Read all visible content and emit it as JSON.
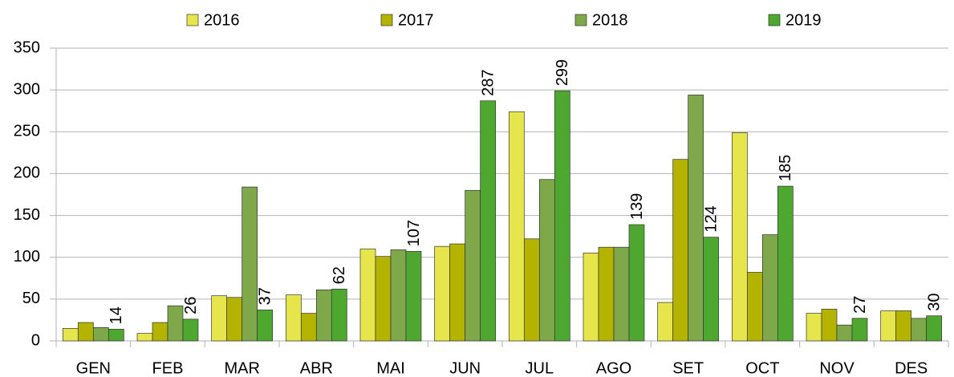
{
  "chart_data": {
    "type": "bar",
    "categories": [
      "GEN",
      "FEB",
      "MAR",
      "ABR",
      "MAI",
      "JUN",
      "JUL",
      "AGO",
      "SET",
      "OCT",
      "NOV",
      "DES"
    ],
    "series": [
      {
        "name": "2016",
        "color": "#e6e64c",
        "values": [
          15,
          9,
          54,
          55,
          110,
          113,
          274,
          105,
          46,
          249,
          33,
          36
        ]
      },
      {
        "name": "2017",
        "color": "#b3b300",
        "values": [
          22,
          22,
          52,
          33,
          101,
          116,
          122,
          112,
          217,
          82,
          38,
          36
        ]
      },
      {
        "name": "2018",
        "color": "#7ea84a",
        "values": [
          16,
          42,
          184,
          61,
          109,
          180,
          193,
          112,
          294,
          127,
          19,
          27
        ]
      },
      {
        "name": "2019",
        "color": "#4ea72e",
        "values": [
          14,
          26,
          37,
          62,
          107,
          287,
          299,
          139,
          124,
          185,
          27,
          30
        ],
        "show_values": true
      }
    ],
    "ylim": [
      0,
      350
    ],
    "yticks": [
      0,
      50,
      100,
      150,
      200,
      250,
      300,
      350
    ],
    "grid": true,
    "legend": "top"
  }
}
